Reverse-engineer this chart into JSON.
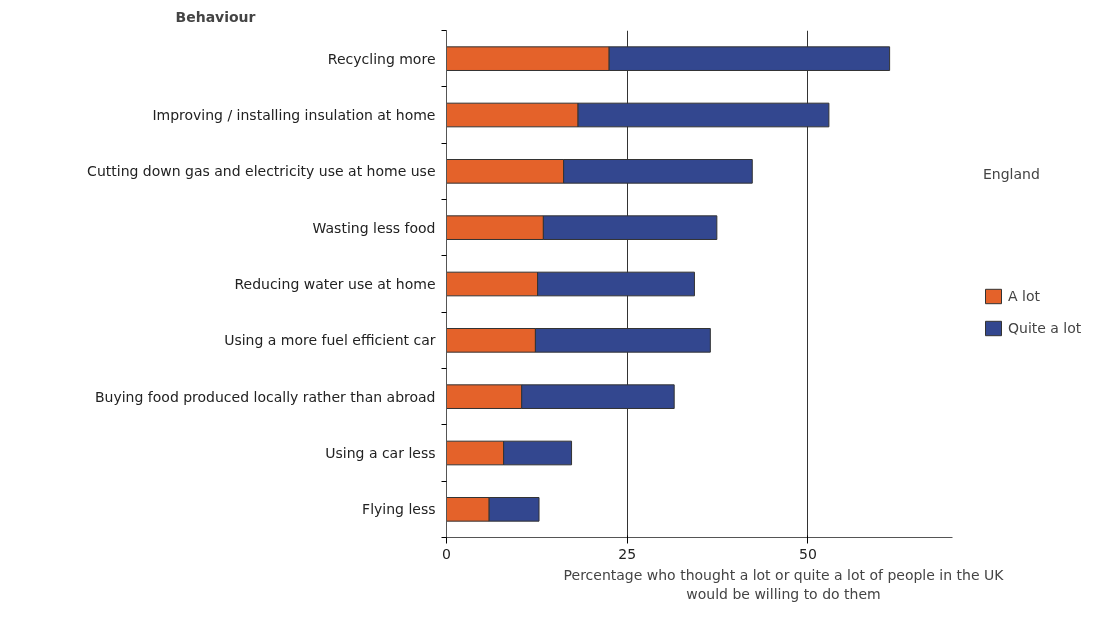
{
  "chart_data": {
    "type": "bar",
    "orientation": "horizontal",
    "stacked": true,
    "ylabel": "Behaviour",
    "xlabel": "Percentage who thought a lot or quite a lot of people in the UK\nwould be willing to do them",
    "legend_title": "England",
    "legend": "right",
    "grid": "x",
    "categories": [
      "Recycling more",
      "Improving / installing insulation at home",
      "Cutting down gas and electricity use at home use",
      "Wasting less food",
      "Reducing water use at home",
      "Using a more fuel efficient car",
      "Buying food produced locally rather than abroad",
      "Using a car less",
      "Flying less"
    ],
    "series": [
      {
        "name": "A lot",
        "color": "#e4622a",
        "values": [
          22.5,
          18.2,
          16.2,
          13.4,
          12.6,
          12.3,
          10.4,
          7.9,
          5.9
        ]
      },
      {
        "name": "Quite a lot",
        "color": "#33478f",
        "values": [
          38.8,
          34.7,
          26.1,
          24.0,
          21.7,
          24.2,
          21.1,
          9.4,
          6.9
        ]
      }
    ],
    "xlim": [
      0,
      70
    ],
    "xticks": [
      0,
      25,
      50
    ]
  }
}
